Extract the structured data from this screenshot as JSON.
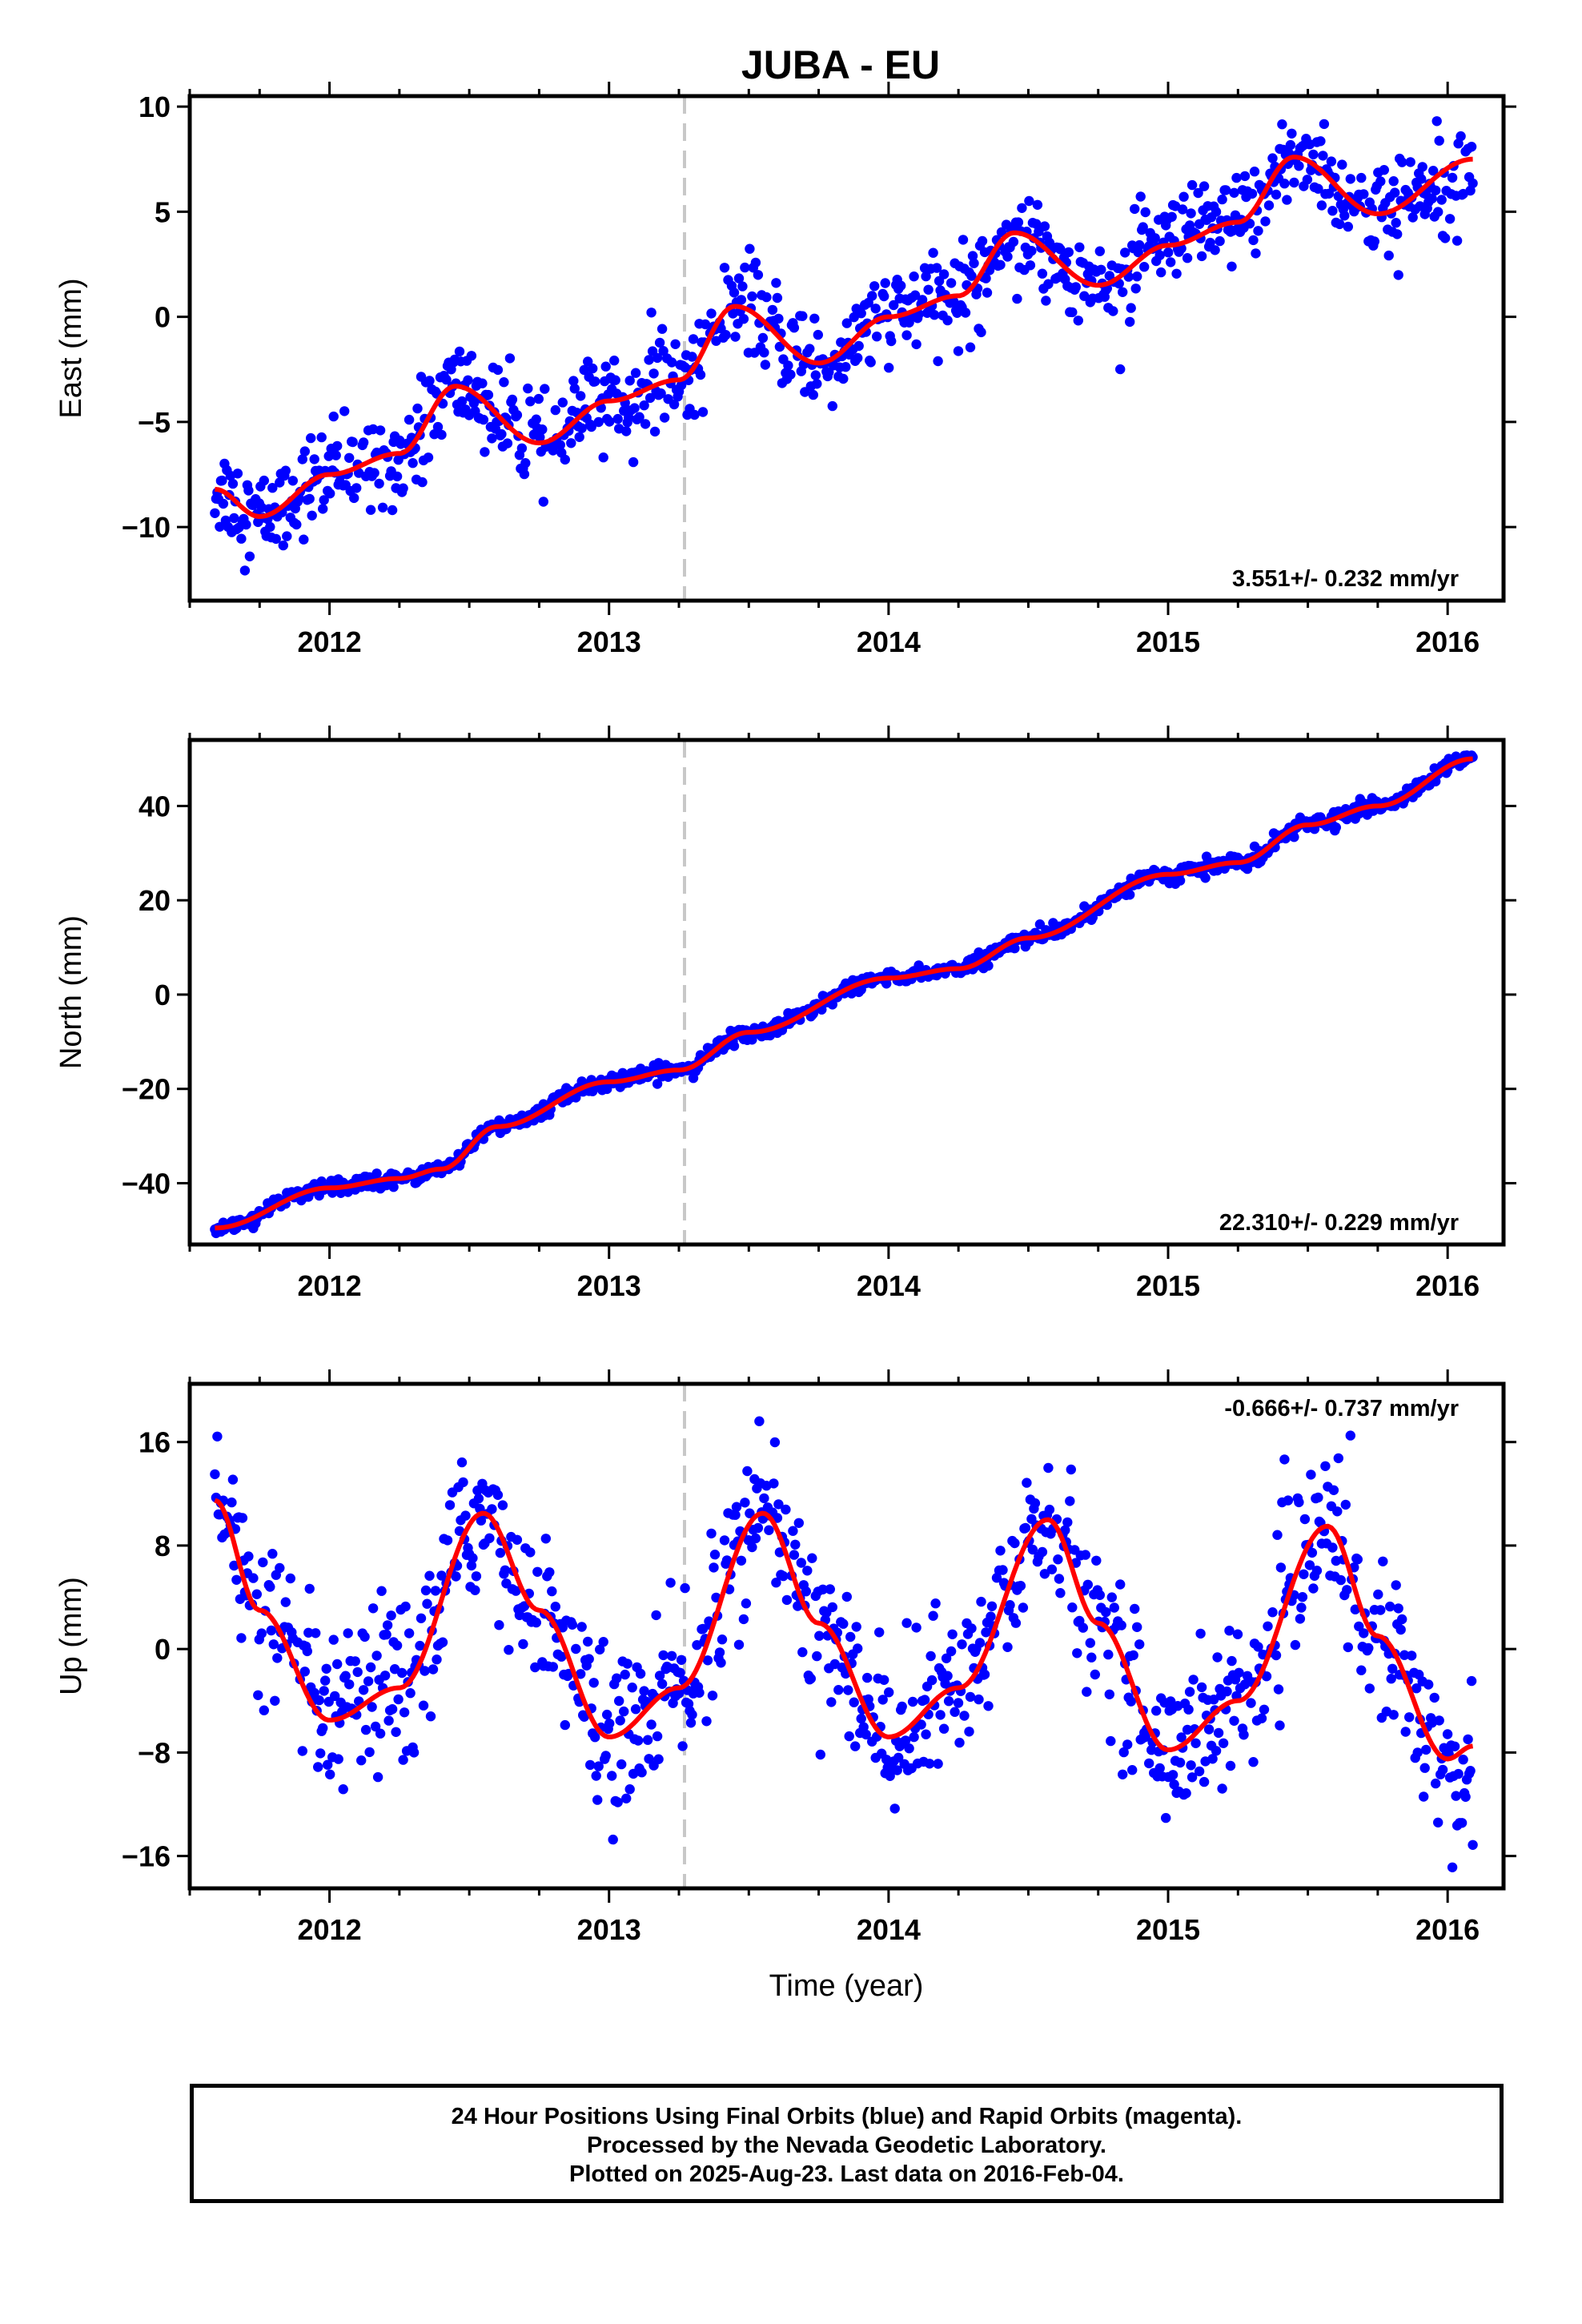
{
  "title": "JUBA - EU",
  "chart_data": [
    {
      "type": "scatter",
      "name": "east",
      "ylabel": "East (mm)",
      "xlabel": "",
      "xlim": [
        2011.5,
        2016.2
      ],
      "ylim": [
        -13.5,
        10.5
      ],
      "yticks": [
        -10,
        -5,
        0,
        5,
        10
      ],
      "ytick_labels": [
        "−10",
        "−5",
        "0",
        "5",
        "10"
      ],
      "xticks": [
        2012,
        2013,
        2014,
        2015,
        2016
      ],
      "xtick_labels": [
        "2012",
        "2013",
        "2014",
        "2015",
        "2016"
      ],
      "rate_text": "3.551+/- 0.232 mm/yr",
      "rate_position": "bottom-right",
      "vertical_marker": 2013.27,
      "x_start": 2011.59,
      "x_end": 2016.09,
      "trend": {
        "rate": 3.551,
        "intercept_2014": -0.5,
        "annual_amp": 2.0,
        "annual_peak": 0.45,
        "scatter": 1.1
      },
      "fit_curve": [
        [
          2011.59,
          -8.2
        ],
        [
          2011.75,
          -9.5
        ],
        [
          2012.0,
          -7.5
        ],
        [
          2012.25,
          -6.5
        ],
        [
          2012.45,
          -3.3
        ],
        [
          2012.75,
          -6.0
        ],
        [
          2013.0,
          -4.0
        ],
        [
          2013.25,
          -3.0
        ],
        [
          2013.45,
          0.5
        ],
        [
          2013.75,
          -2.2
        ],
        [
          2014.0,
          0.0
        ],
        [
          2014.25,
          1.0
        ],
        [
          2014.45,
          4.0
        ],
        [
          2014.75,
          1.5
        ],
        [
          2015.0,
          3.4
        ],
        [
          2015.25,
          4.5
        ],
        [
          2015.45,
          7.6
        ],
        [
          2015.75,
          4.9
        ],
        [
          2016.09,
          7.5
        ]
      ],
      "grid": false
    },
    {
      "type": "scatter",
      "name": "north",
      "ylabel": "North (mm)",
      "xlabel": "",
      "xlim": [
        2011.5,
        2016.2
      ],
      "ylim": [
        -53,
        54
      ],
      "yticks": [
        -40,
        -20,
        0,
        20,
        40
      ],
      "ytick_labels": [
        "−40",
        "−20",
        "0",
        "20",
        "40"
      ],
      "xticks": [
        2012,
        2013,
        2014,
        2015,
        2016
      ],
      "xtick_labels": [
        "2012",
        "2013",
        "2014",
        "2015",
        "2016"
      ],
      "rate_text": "22.310+/- 0.229 mm/yr",
      "rate_position": "bottom-right",
      "vertical_marker": 2013.27,
      "x_start": 2011.59,
      "x_end": 2016.09,
      "trend": {
        "rate": 22.31,
        "intercept_2014": 3.0,
        "annual_amp": 1.5,
        "annual_peak": 0.1,
        "scatter": 0.8
      },
      "fit_curve": [
        [
          2011.59,
          -49.5
        ],
        [
          2012.0,
          -41
        ],
        [
          2012.25,
          -39
        ],
        [
          2012.4,
          -37
        ],
        [
          2012.6,
          -28
        ],
        [
          2013.0,
          -18.5
        ],
        [
          2013.25,
          -16
        ],
        [
          2013.5,
          -8
        ],
        [
          2014.0,
          3.5
        ],
        [
          2014.25,
          5.5
        ],
        [
          2014.5,
          12
        ],
        [
          2015.0,
          25.5
        ],
        [
          2015.25,
          28
        ],
        [
          2015.5,
          36
        ],
        [
          2015.75,
          40
        ],
        [
          2016.09,
          50
        ]
      ],
      "grid": false
    },
    {
      "type": "scatter",
      "name": "up",
      "ylabel": "Up (mm)",
      "xlabel": "Time (year)",
      "xlim": [
        2011.5,
        2016.2
      ],
      "ylim": [
        -18.5,
        20.5
      ],
      "yticks": [
        -16,
        -8,
        0,
        8,
        16
      ],
      "ytick_labels": [
        "−16",
        "−8",
        "0",
        "8",
        "16"
      ],
      "xticks": [
        2012,
        2013,
        2014,
        2015,
        2016
      ],
      "xtick_labels": [
        "2012",
        "2013",
        "2014",
        "2015",
        "2016"
      ],
      "rate_text": "-0.666+/- 0.737 mm/yr",
      "rate_position": "top-right",
      "vertical_marker": 2013.27,
      "x_start": 2011.59,
      "x_end": 2016.09,
      "trend": {
        "rate": -0.666,
        "intercept_2014": 1.5,
        "annual_amp": 8.7,
        "annual_peak": 0.57,
        "scatter": 3.0
      },
      "fit_curve": [
        [
          2011.59,
          11.5
        ],
        [
          2011.75,
          3
        ],
        [
          2012.0,
          -5.5
        ],
        [
          2012.25,
          -3
        ],
        [
          2012.55,
          10.5
        ],
        [
          2012.75,
          3
        ],
        [
          2013.0,
          -6.8
        ],
        [
          2013.25,
          -3
        ],
        [
          2013.55,
          10.5
        ],
        [
          2013.75,
          2
        ],
        [
          2014.0,
          -6.8
        ],
        [
          2014.25,
          -3
        ],
        [
          2014.57,
          10
        ],
        [
          2014.75,
          2
        ],
        [
          2015.0,
          -7.8
        ],
        [
          2015.25,
          -4
        ],
        [
          2015.57,
          9.5
        ],
        [
          2015.75,
          1
        ],
        [
          2016.0,
          -8.5
        ],
        [
          2016.09,
          -7.5
        ]
      ],
      "grid": false
    }
  ],
  "footer": {
    "line1": "24 Hour Positions Using Final Orbits (blue) and Rapid Orbits (magenta).",
    "line2": "Processed by the Nevada Geodetic Laboratory.",
    "line3": "Plotted on 2025-Aug-23. Last data on 2016-Feb-04."
  },
  "colors": {
    "points": "#0000ff",
    "fit": "#ff0000",
    "marker_line": "#c8c8c8",
    "frame": "#000000"
  }
}
